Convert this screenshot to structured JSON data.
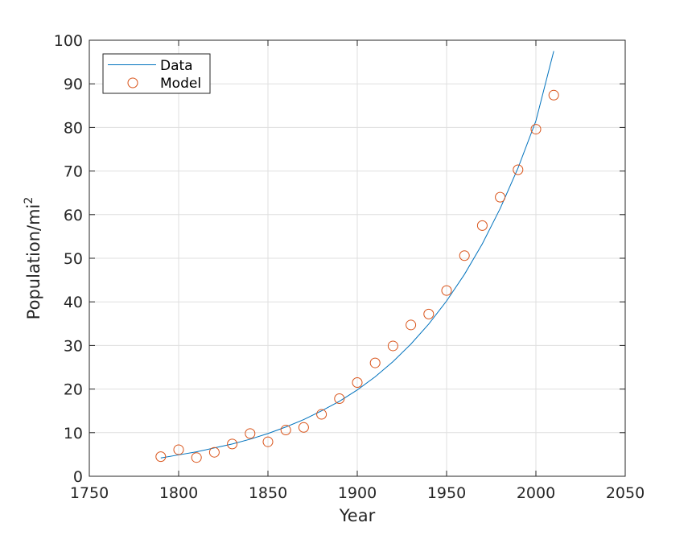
{
  "chart_data": {
    "type": "line",
    "title": "",
    "xlabel": "Year",
    "ylabel": {
      "base": "Population/mi",
      "superscript": "2"
    },
    "xlim": [
      1750,
      2050
    ],
    "ylim": [
      0,
      100
    ],
    "xticks": [
      "1750",
      "1800",
      "1850",
      "1900",
      "1950",
      "2000",
      "2050"
    ],
    "yticks": [
      "0",
      "10",
      "20",
      "30",
      "40",
      "50",
      "60",
      "70",
      "80",
      "90",
      "100"
    ],
    "grid": true,
    "legend": {
      "position": "top-left",
      "entries": [
        "Data",
        "Model"
      ]
    },
    "x": [
      1790,
      1800,
      1810,
      1820,
      1830,
      1840,
      1850,
      1860,
      1870,
      1880,
      1890,
      1900,
      1910,
      1920,
      1930,
      1940,
      1950,
      1960,
      1970,
      1980,
      1990,
      2000,
      2010
    ],
    "series": [
      {
        "name": "Data",
        "style": "line",
        "color": "#0072bd",
        "values": [
          4.2,
          4.9,
          5.6,
          6.5,
          7.4,
          8.5,
          9.8,
          11.3,
          13.0,
          15.0,
          17.2,
          19.8,
          22.8,
          26.3,
          30.3,
          34.9,
          40.2,
          46.3,
          53.3,
          61.4,
          70.7,
          81.5,
          97.5
        ]
      },
      {
        "name": "Model",
        "style": "marker",
        "color": "#d95319",
        "values": [
          4.5,
          6.1,
          4.3,
          5.5,
          7.4,
          9.8,
          7.9,
          10.6,
          11.2,
          14.2,
          17.8,
          21.5,
          26.0,
          29.9,
          34.7,
          37.2,
          42.6,
          50.6,
          57.5,
          64.0,
          70.3,
          79.6,
          87.4
        ]
      }
    ]
  }
}
